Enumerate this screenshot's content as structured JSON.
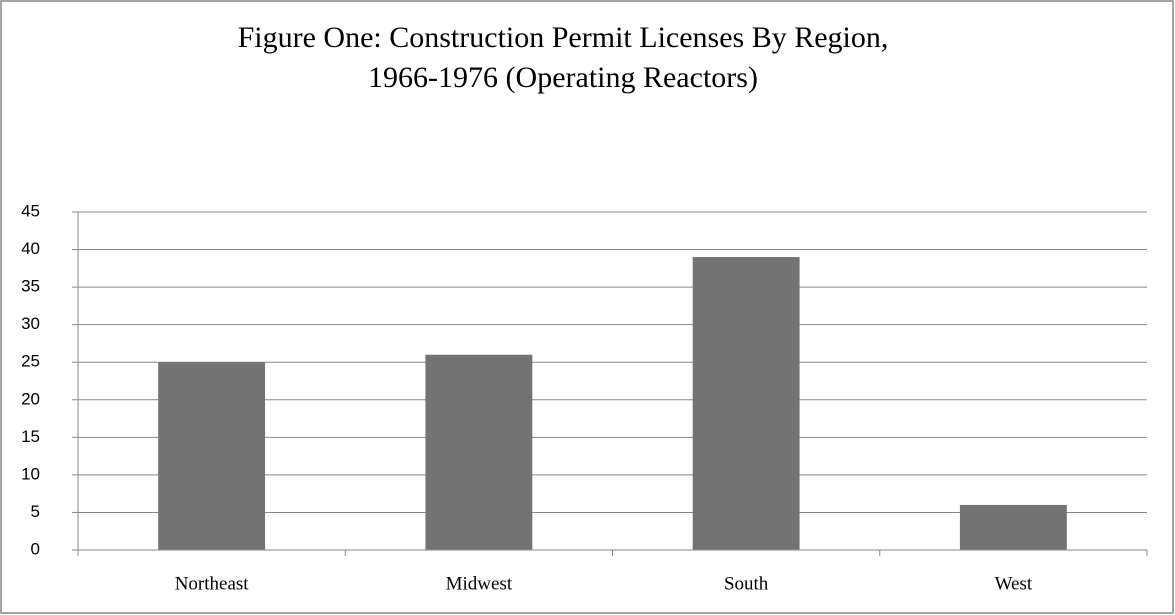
{
  "chart_data": {
    "type": "bar",
    "title": [
      "Figure One: Construction Permit Licenses By Region,",
      "1966-1976 (Operating Reactors)"
    ],
    "categories": [
      "Northeast",
      "Midwest",
      "South",
      "West"
    ],
    "values": [
      25,
      26,
      39,
      6
    ],
    "color": "#737373",
    "ylim": [
      0,
      45
    ],
    "yticks": [
      0,
      5,
      10,
      15,
      20,
      25,
      30,
      35,
      40,
      45
    ],
    "grid": true
  }
}
